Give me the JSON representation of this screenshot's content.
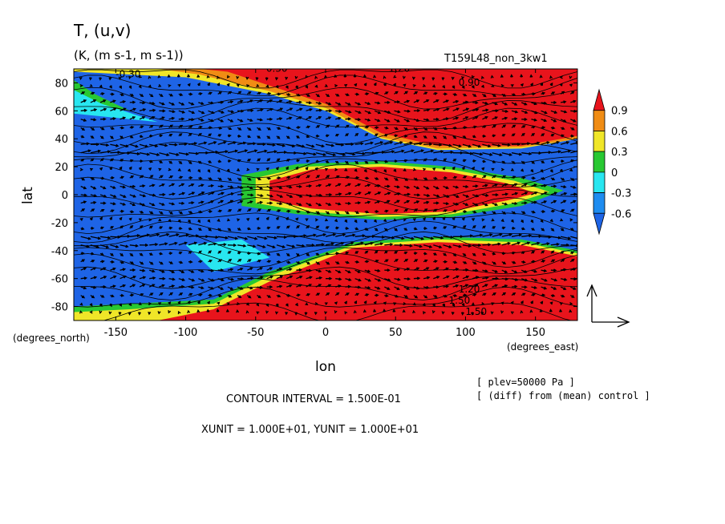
{
  "chart_data": {
    "type": "heatmap",
    "title": "T,  (u,v)",
    "subtitle": "(K,  (m s-1,  m s-1))",
    "run_label": "T159L48_non_3kw1",
    "xlabel": "lon",
    "ylabel": "lat",
    "x_unit_label": "(degrees_east)",
    "y_unit_label": "(degrees_north)",
    "xlim": [
      -180,
      180
    ],
    "ylim": [
      -90,
      90
    ],
    "x_ticks": [
      -150,
      -100,
      -50,
      0,
      50,
      100,
      150
    ],
    "y_ticks": [
      80,
      60,
      40,
      20,
      0,
      -20,
      -40,
      -60,
      -80
    ],
    "x_tick_labels": [
      "-150",
      "-100",
      "-50",
      "0",
      "50",
      "100",
      "150"
    ],
    "y_tick_labels": [
      "80",
      "60",
      "40",
      "20",
      "0",
      "-20",
      "-40",
      "-60",
      "-80"
    ],
    "colorbar": {
      "labels": [
        "0.9",
        "0.6",
        "0.3",
        "0",
        "-0.3",
        "-0.6"
      ],
      "bins": [
        {
          "range": [
            0.9,
            1.2
          ],
          "color": "#e8141c"
        },
        {
          "range": [
            0.6,
            0.9
          ],
          "color": "#f08c14"
        },
        {
          "range": [
            0.3,
            0.6
          ],
          "color": "#f0e628"
        },
        {
          "range": [
            0.0,
            0.3
          ],
          "color": "#28c832"
        },
        {
          "range": [
            -0.3,
            0.0
          ],
          "color": "#28e6f0"
        },
        {
          "range": [
            -0.6,
            -0.3
          ],
          "color": "#1e8cf0"
        },
        {
          "range": [
            -0.9,
            -0.6
          ],
          "color": "#1e64e6"
        }
      ]
    },
    "contour_labels": [
      "-0.30",
      "-0.30",
      "0.90",
      "1.20",
      "1.20",
      "1.50",
      "1.50"
    ],
    "grid": false,
    "contour_interval": "CONTOUR INTERVAL = 1.500E-01",
    "units_line": "XUNIT = 1.000E+01, YUNIT = 1.000E+01",
    "level": "[ plev=50000 Pa ]",
    "diff_note": "[ (diff) from (mean) control ]"
  },
  "colors": {
    "red": "#e8141c",
    "orange": "#f08c14",
    "yellow": "#f0e628",
    "green": "#28c832",
    "cyan": "#28e6f0",
    "lightblue": "#1e8cf0",
    "blue": "#1e64e6",
    "vector": "#000000"
  }
}
